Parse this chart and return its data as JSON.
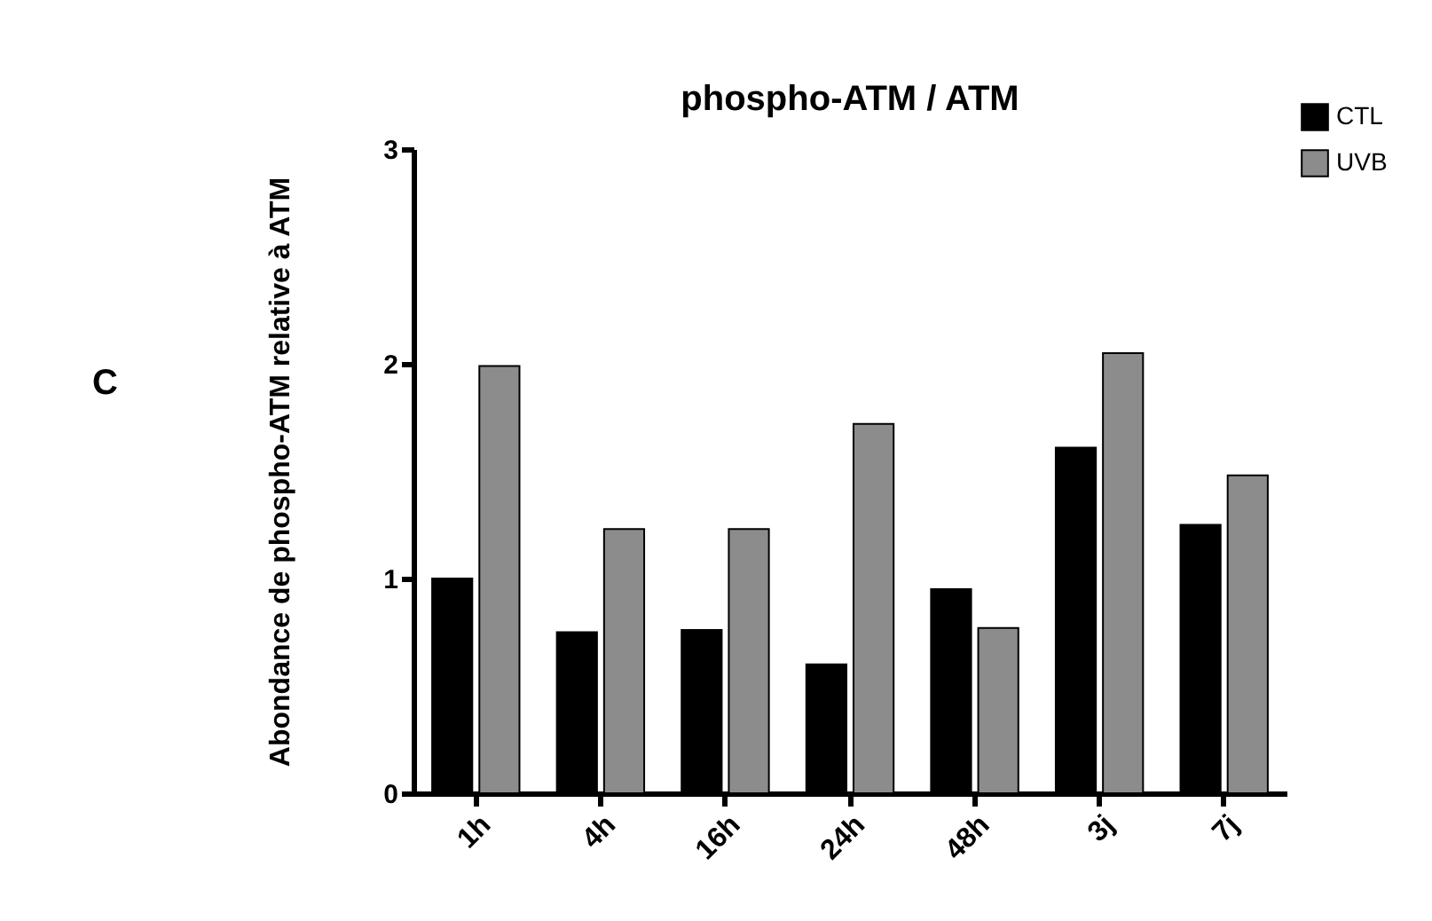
{
  "chart_data": {
    "type": "bar",
    "title": "phospho-ATM / ATM",
    "ylabel": "Abondance de phospho-ATM relative à  ATM",
    "annotations": [
      "C"
    ],
    "categories": [
      "1h",
      "4h",
      "16h",
      "24h",
      "48h",
      "3j",
      "7j"
    ],
    "series": [
      {
        "name": "CTL",
        "color": "#000000",
        "values": [
          1.0,
          0.75,
          0.76,
          0.6,
          0.95,
          1.61,
          1.25
        ]
      },
      {
        "name": "UVB",
        "color": "#8c8c8c",
        "values": [
          1.99,
          1.23,
          1.23,
          1.72,
          0.77,
          2.05,
          1.48
        ]
      }
    ],
    "ylim": [
      0,
      3
    ],
    "yticks": [
      0,
      1,
      2,
      3
    ],
    "grid": false,
    "legend": "top right"
  }
}
